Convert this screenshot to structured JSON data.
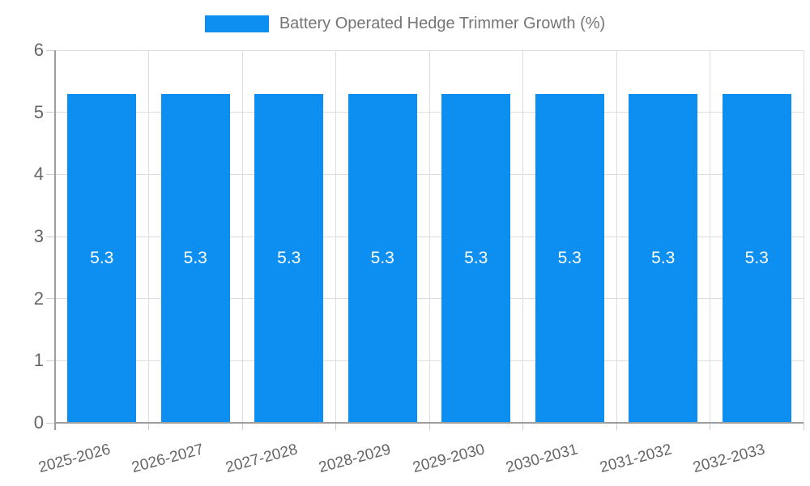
{
  "chart_data": {
    "type": "bar",
    "title": "Battery Operated Hedge Trimmer Growth (%)",
    "categories": [
      "2025-2026",
      "2026-2027",
      "2027-2028",
      "2028-2029",
      "2029-2030",
      "2030-2031",
      "2031-2032",
      "2032-2033"
    ],
    "series": [
      {
        "name": "Battery Operated Hedge Trimmer Growth (%)",
        "values": [
          5.3,
          5.3,
          5.3,
          5.3,
          5.3,
          5.3,
          5.3,
          5.3
        ]
      }
    ],
    "bar_labels": [
      "5.3",
      "5.3",
      "5.3",
      "5.3",
      "5.3",
      "5.3",
      "5.3",
      "5.3"
    ],
    "xlabel": "",
    "ylabel": "",
    "ylim": [
      0,
      6
    ],
    "yticks": [
      0,
      1,
      2,
      3,
      4,
      5,
      6
    ],
    "grid": true,
    "legend_position": "top",
    "colors": {
      "bar": "#0d8ff2",
      "bar_label": "#ffffff",
      "legend_text": "#757575",
      "axis_text": "#666666",
      "gridline": "#dddddd",
      "axis_line": "#9e9e9e",
      "background": "#ffffff"
    }
  }
}
